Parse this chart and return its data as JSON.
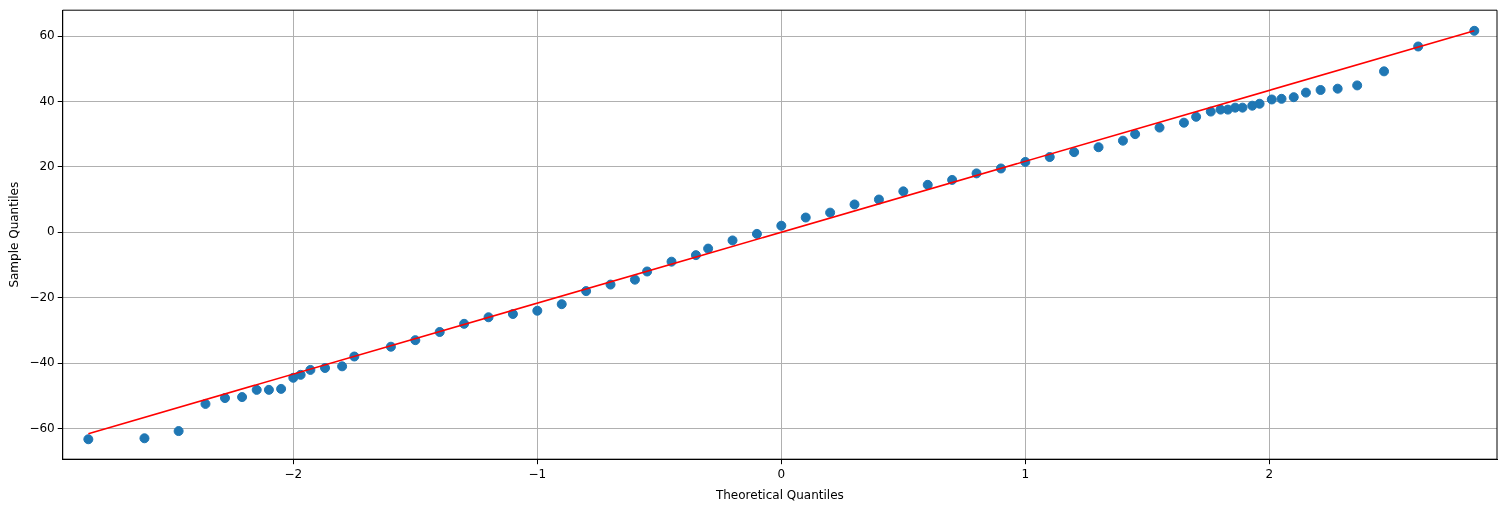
{
  "chart_data": {
    "type": "scatter",
    "xlabel": "Theoretical Quantiles",
    "ylabel": "Sample Quantiles",
    "xlim": [
      -2.945,
      2.933
    ],
    "ylim": [
      -69.4,
      67.9
    ],
    "xticks": [
      -2,
      -1,
      0,
      1,
      2
    ],
    "yticks": [
      -60,
      -40,
      -20,
      0,
      20,
      40,
      60
    ],
    "grid": true,
    "legend": false,
    "marker": "circle",
    "series": [
      {
        "color": "#1f77b4",
        "x": [
          -2.84,
          -2.61,
          -2.47,
          -2.36,
          -2.28,
          -2.21,
          -2.15,
          -2.1,
          -2.05,
          -2.0,
          -1.97,
          -1.93,
          -1.87,
          -1.8,
          -1.75,
          -1.6,
          -1.5,
          -1.4,
          -1.3,
          -1.2,
          -1.1,
          -1.0,
          -0.9,
          -0.8,
          -0.7,
          -0.6,
          -0.55,
          -0.45,
          -0.35,
          -0.3,
          -0.2,
          -0.1,
          0.0,
          0.1,
          0.2,
          0.3,
          0.4,
          0.5,
          0.6,
          0.7,
          0.8,
          0.9,
          1.0,
          1.1,
          1.2,
          1.3,
          1.4,
          1.45,
          1.55,
          1.65,
          1.7,
          1.76,
          1.8,
          1.83,
          1.86,
          1.89,
          1.93,
          1.96,
          2.01,
          2.05,
          2.1,
          2.15,
          2.21,
          2.28,
          2.36,
          2.47,
          2.61,
          2.84
        ],
        "values": [
          -63.3,
          -63.0,
          -60.8,
          -52.5,
          -50.7,
          -50.4,
          -48.2,
          -48.2,
          -47.9,
          -44.5,
          -43.6,
          -42.1,
          -41.5,
          -41,
          -38,
          -35,
          -33,
          -30.5,
          -28,
          -26,
          -25,
          -24,
          -22,
          -18,
          -16,
          -14.5,
          -12,
          -9,
          -7,
          -5,
          -2.5,
          -0.5,
          2,
          4.5,
          6,
          8.5,
          10,
          12.5,
          14.5,
          16,
          18,
          19.5,
          21.5,
          23,
          24.5,
          26,
          28,
          30,
          32,
          33.5,
          35.3,
          36.9,
          37.5,
          37.5,
          38.1,
          38.1,
          38.7,
          39.3,
          40.6,
          40.8,
          41.3,
          42.7,
          43.5,
          43.9,
          44.9,
          49.2,
          56.8,
          61.6
        ]
      },
      {
        "type": "line",
        "color": "#ff0000",
        "marker": "none",
        "x": [
          -2.84,
          2.84
        ],
        "values": [
          -61.6,
          61.6
        ]
      }
    ]
  }
}
